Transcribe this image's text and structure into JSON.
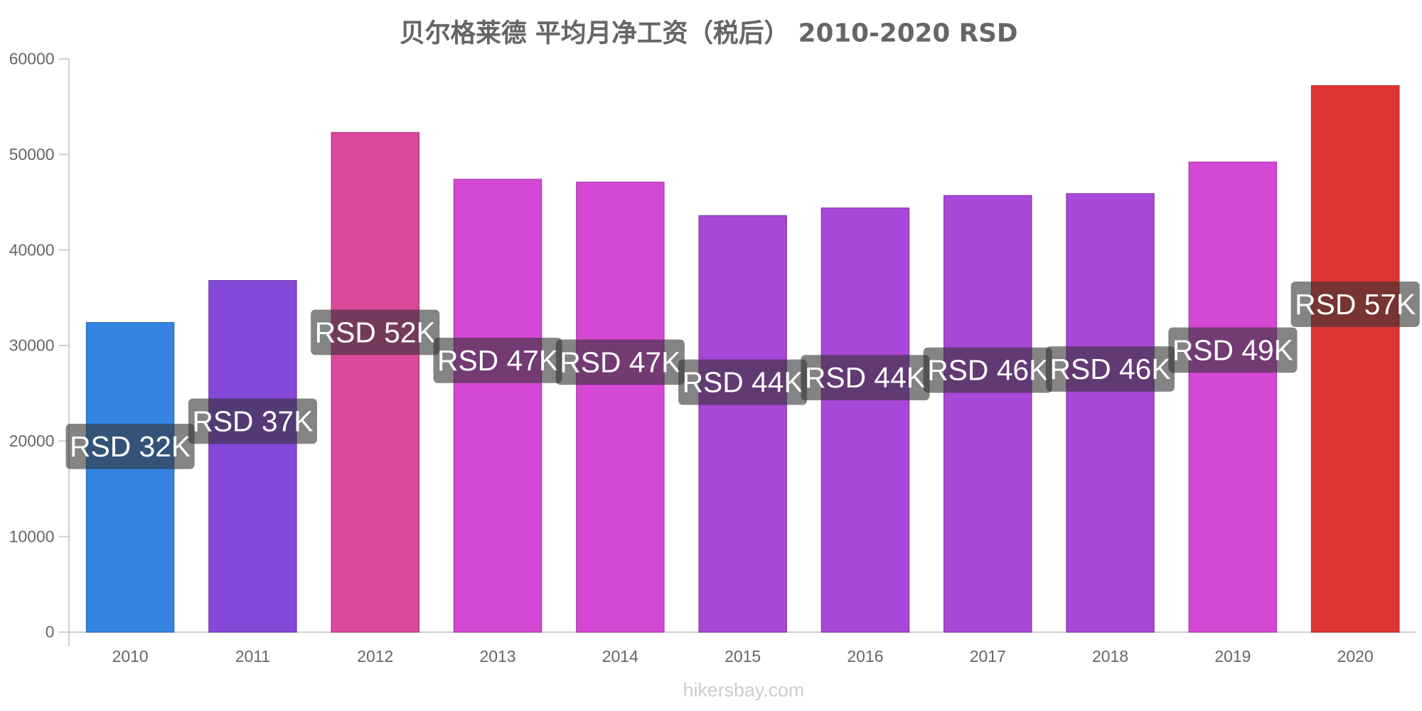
{
  "chart_data": {
    "type": "bar",
    "title": "贝尔格莱德 平均月净工资（税后） 2010-2020 RSD",
    "xlabel": "",
    "ylabel": "",
    "categories": [
      "2010",
      "2011",
      "2012",
      "2013",
      "2014",
      "2015",
      "2016",
      "2017",
      "2018",
      "2019",
      "2020"
    ],
    "values": [
      32400,
      36800,
      52300,
      47400,
      47100,
      43600,
      44400,
      45700,
      45900,
      49200,
      57200
    ],
    "data_labels": [
      "RSD 32K",
      "RSD 37K",
      "RSD 52K",
      "RSD 47K",
      "RSD 47K",
      "RSD 44K",
      "RSD 44K",
      "RSD 46K",
      "RSD 46K",
      "RSD 49K",
      "RSD 57K"
    ],
    "bar_colors": [
      "#3584e4",
      "#8548d8",
      "#d9489a",
      "#d548d4",
      "#d548d4",
      "#a848d8",
      "#a848d8",
      "#a848d8",
      "#a848d8",
      "#d548d4",
      "#e03535"
    ],
    "y_ticks": [
      0,
      10000,
      20000,
      30000,
      40000,
      50000,
      60000
    ],
    "ylim": [
      0,
      60000
    ],
    "grid": false,
    "legend": "none"
  },
  "watermark": "hikersbay.com"
}
